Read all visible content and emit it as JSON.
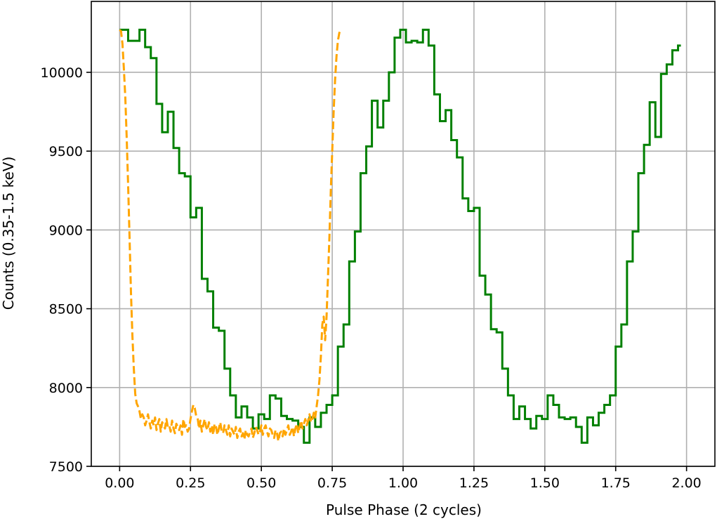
{
  "chart_data": {
    "type": "line",
    "title": "",
    "xlabel": "Pulse Phase (2 cycles)",
    "ylabel": "Counts (0.35-1.5 keV)",
    "xlim": [
      -0.1,
      2.1
    ],
    "ylim": [
      7500,
      10450
    ],
    "xticks": [
      0.0,
      0.25,
      0.5,
      0.75,
      1.0,
      1.25,
      1.5,
      1.75,
      2.0
    ],
    "xtick_labels": [
      "0.00",
      "0.25",
      "0.50",
      "0.75",
      "1.00",
      "1.25",
      "1.50",
      "1.75",
      "2.00"
    ],
    "yticks": [
      7500,
      8000,
      8500,
      9000,
      9500,
      10000
    ],
    "ytick_labels": [
      "7500",
      "8000",
      "8500",
      "9000",
      "9500",
      "10000"
    ],
    "grid": true,
    "series": [
      {
        "style": "steps-mid",
        "color": "#008000",
        "x0": 0.0,
        "dx": 0.02,
        "values": [
          10270,
          10270,
          10200,
          10200,
          10270,
          10160,
          10090,
          9800,
          9620,
          9750,
          9520,
          9360,
          9340,
          9080,
          9140,
          8690,
          8610,
          8380,
          8360,
          8120,
          7950,
          7810,
          7880,
          7810,
          7740,
          7830,
          7800,
          7950,
          7930,
          7820,
          7800,
          7790,
          7750,
          7650,
          7810,
          7750,
          7840,
          7890,
          7950,
          8260,
          8400,
          8800,
          8990,
          9360,
          9530,
          9820,
          9650,
          9820,
          10000,
          10220,
          10270,
          10190,
          10200,
          10190,
          10270,
          10170,
          9860,
          9690,
          9760,
          9570,
          9460,
          9200,
          9120,
          9140,
          8710,
          8590,
          8370,
          8350,
          8120,
          7950,
          7800,
          7880,
          7800,
          7740,
          7820,
          7800,
          7950,
          7890,
          7810,
          7800,
          7810,
          7750,
          7650,
          7810,
          7760,
          7840,
          7890,
          7950,
          8260,
          8400,
          8800,
          8990,
          9360,
          9540,
          9810,
          9590,
          9990,
          10050,
          10140,
          10170
        ]
      },
      {
        "style": "dashed",
        "color": "#ffa500",
        "x0": 0.0,
        "dx": 0.005,
        "values": [
          10270,
          10260,
          10180,
          10020,
          9840,
          9580,
          9280,
          8950,
          8600,
          8330,
          8120,
          7960,
          7900,
          7880,
          7850,
          7800,
          7830,
          7810,
          7760,
          7790,
          7830,
          7780,
          7740,
          7790,
          7760,
          7810,
          7730,
          7770,
          7800,
          7720,
          7780,
          7760,
          7740,
          7800,
          7750,
          7760,
          7720,
          7790,
          7740,
          7710,
          7770,
          7750,
          7730,
          7760,
          7700,
          7800,
          7750,
          7760,
          7720,
          7740,
          7800,
          7850,
          7890,
          7870,
          7820,
          7810,
          7740,
          7790,
          7720,
          7760,
          7800,
          7750,
          7730,
          7780,
          7720,
          7760,
          7700,
          7770,
          7750,
          7700,
          7740,
          7780,
          7720,
          7710,
          7760,
          7730,
          7700,
          7760,
          7690,
          7740,
          7720,
          7700,
          7750,
          7680,
          7720,
          7740,
          7690,
          7710,
          7670,
          7730,
          7700,
          7690,
          7720,
          7740,
          7680,
          7710,
          7750,
          7730,
          7700,
          7720,
          7760,
          7700,
          7740,
          7760,
          7720,
          7690,
          7740,
          7730,
          7700,
          7680,
          7730,
          7710,
          7660,
          7710,
          7720,
          7690,
          7740,
          7700,
          7730,
          7760,
          7700,
          7720,
          7750,
          7690,
          7740,
          7770,
          7710,
          7750,
          7790,
          7740,
          7770,
          7800,
          7760,
          7790,
          7830,
          7780,
          7800,
          7840,
          7810,
          7880,
          7950,
          8050,
          8200,
          8400,
          8450,
          8300,
          8450,
          8700,
          8950,
          9250,
          9500,
          9750,
          9950,
          10100,
          10200,
          10250,
          10270
        ]
      }
    ]
  }
}
